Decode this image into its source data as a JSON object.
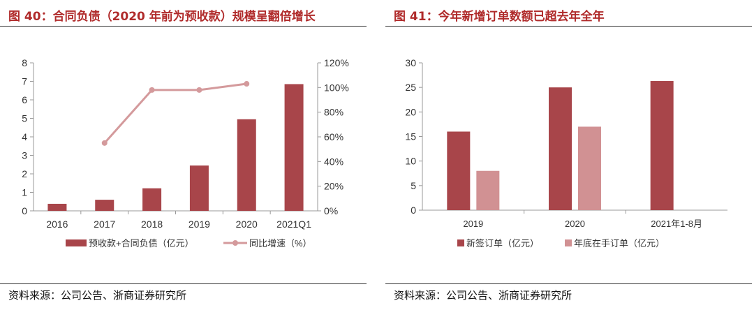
{
  "left_panel": {
    "title": "图 40：合同负债（2020 年前为预收款）规模呈翻倍增长",
    "source": "资料来源：公司公告、浙商证券研究所"
  },
  "right_panel": {
    "title": "图 41：今年新增订单数额已超去年全年",
    "source": "资料来源：公司公告、浙商证券研究所"
  },
  "colors": {
    "bar_dark": "#a8454a",
    "bar_light": "#d19193",
    "line": "#d49a9c",
    "title": "#b02b2b"
  },
  "chart_data": [
    {
      "type": "bar",
      "categories": [
        "2016",
        "2017",
        "2018",
        "2019",
        "2020",
        "2021Q1"
      ],
      "series": [
        {
          "name": "预收款+合同负债（亿元）",
          "type": "bar",
          "axis": "left",
          "values": [
            0.38,
            0.6,
            1.22,
            2.45,
            4.95,
            6.85
          ]
        },
        {
          "name": "同比增速（%）",
          "type": "line",
          "axis": "right",
          "values": [
            null,
            55,
            98,
            98,
            103,
            null
          ]
        }
      ],
      "ylim": [
        0,
        8
      ],
      "yticks": [
        "0",
        "1",
        "2",
        "3",
        "4",
        "5",
        "6",
        "7",
        "8"
      ],
      "y2lim": [
        0,
        120
      ],
      "y2ticks": [
        "0%",
        "20%",
        "40%",
        "60%",
        "80%",
        "100%",
        "120%"
      ],
      "legend": "bottom"
    },
    {
      "type": "bar",
      "categories": [
        "2019",
        "2020",
        "2021年1-8月"
      ],
      "series": [
        {
          "name": "新签订单（亿元）",
          "values": [
            16,
            25,
            26.3
          ]
        },
        {
          "name": "年底在手订单（亿元）",
          "values": [
            8,
            17,
            null
          ]
        }
      ],
      "ylim": [
        0,
        30
      ],
      "yticks": [
        "0",
        "5",
        "10",
        "15",
        "20",
        "25",
        "30"
      ],
      "legend": "bottom"
    }
  ]
}
